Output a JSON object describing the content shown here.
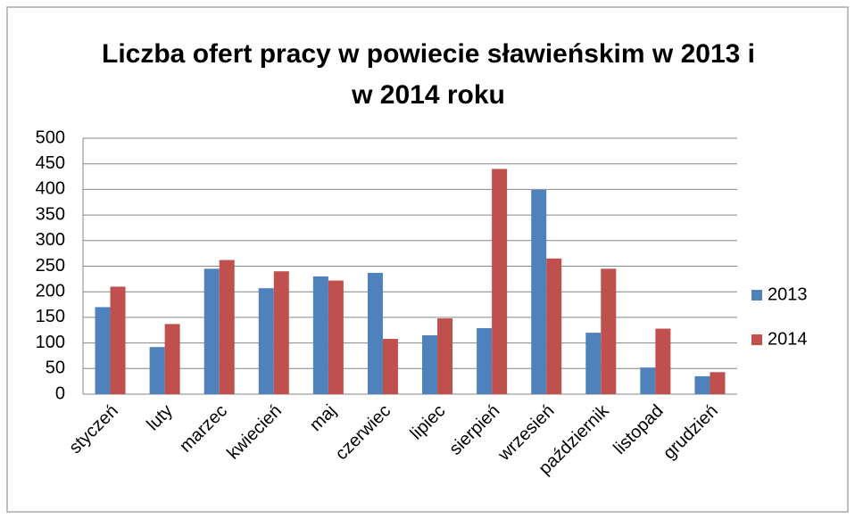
{
  "chart_data": {
    "type": "bar",
    "title": "Liczba ofert pracy w powiecie sławieńskim w 2013 i w 2014 roku",
    "categories": [
      "styczeń",
      "luty",
      "marzec",
      "kwiecień",
      "maj",
      "czerwiec",
      "lipiec",
      "sierpień",
      "wrzesień",
      "październik",
      "listopad",
      "grudzień"
    ],
    "series": [
      {
        "name": "2013",
        "color": "#4f81bd",
        "values": [
          170,
          92,
          245,
          207,
          230,
          237,
          115,
          129,
          399,
          120,
          52,
          35
        ]
      },
      {
        "name": "2014",
        "color": "#c0504d",
        "values": [
          210,
          137,
          262,
          240,
          222,
          108,
          148,
          440,
          265,
          245,
          128,
          43
        ]
      }
    ],
    "ylim": [
      0,
      500
    ],
    "yticks": [
      0,
      50,
      100,
      150,
      200,
      250,
      300,
      350,
      400,
      450,
      500
    ],
    "grid": true,
    "legend": "right"
  }
}
